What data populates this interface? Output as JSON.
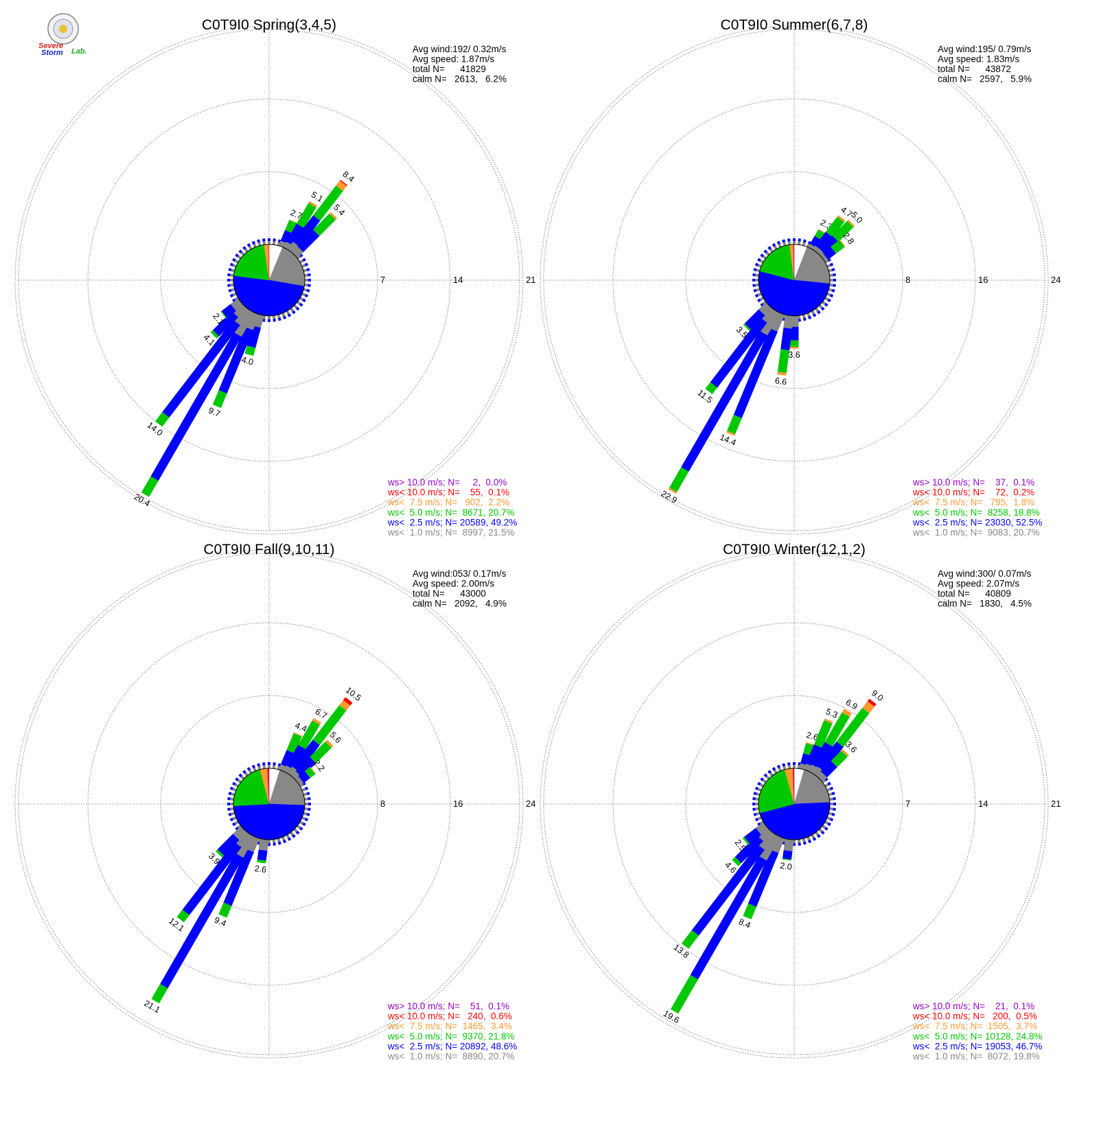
{
  "logo": {
    "line1": "Severe",
    "line2": "Storm",
    "line3": "Lab."
  },
  "colors": {
    "calm": "#ffffff",
    "ws_lt_1": "#888888",
    "ws_lt_2_5": "#0000ff",
    "ws_lt_5": "#00c800",
    "ws_lt_7_5": "#ff9933",
    "ws_lt_10": "#ff0000",
    "ws_gt_10": "#9900cc"
  },
  "chart_data": [
    {
      "type": "polar-bar",
      "title": "C0T9I0 Spring(3,4,5)",
      "stats": [
        "Avg wind:192/ 0.32m/s",
        "Avg speed: 1.87m/s",
        "total N=      41829",
        "calm N=   2613,   6.2%"
      ],
      "ring_labels": [
        "7",
        "14",
        "21"
      ],
      "rmax": 21,
      "legend": [
        {
          "text": "ws> 10.0 m/s; N=     2,  0.0%",
          "color": "#9900cc"
        },
        {
          "text": "ws< 10.0 m/s; N=    55,  0.1%",
          "color": "#ff0000"
        },
        {
          "text": "ws<  7.5 m/s; N=   902,  2.2%",
          "color": "#ff9933"
        },
        {
          "text": "ws<  5.0 m/s; N=  8671, 20.7%",
          "color": "#00c800"
        },
        {
          "text": "ws<  2.5 m/s; N= 20589, 49.2%",
          "color": "#0000ff"
        },
        {
          "text": "ws<  1.0 m/s; N=  8997, 21.5%",
          "color": "#888888"
        }
      ],
      "pie": [
        6.2,
        21.5,
        49.2,
        20.7,
        2.2,
        0.1,
        0.0
      ],
      "petals": [
        {
          "dir": 22.5,
          "total": 2.7,
          "label": "2.7",
          "segs": [
            0.5,
            1.1,
            1.05,
            0.05
          ]
        },
        {
          "dir": 30,
          "total": 5.1,
          "label": "5.1",
          "segs": [
            0.6,
            2.0,
            2.3,
            0.2
          ]
        },
        {
          "dir": 37.5,
          "total": 8.4,
          "label": "8.4",
          "segs": [
            0.9,
            3.2,
            3.6,
            0.6,
            0.1
          ]
        },
        {
          "dir": 45,
          "total": 5.4,
          "label": "5.4",
          "segs": [
            0.8,
            2.2,
            2.2,
            0.2
          ]
        },
        {
          "dir": 195,
          "total": 4.0,
          "label": "4.0",
          "segs": [
            1.2,
            2.0,
            0.8
          ]
        },
        {
          "dir": 202.5,
          "total": 9.7,
          "label": "9.7",
          "segs": [
            1.6,
            6.6,
            1.5
          ]
        },
        {
          "dir": 210,
          "total": 20.4,
          "label": "20.4",
          "segs": [
            2.6,
            16.0,
            1.8
          ]
        },
        {
          "dir": 217.5,
          "total": 14.0,
          "label": "14.0",
          "segs": [
            1.7,
            11.2,
            1.1
          ]
        },
        {
          "dir": 225,
          "total": 4.1,
          "label": "4.1",
          "segs": [
            1.2,
            2.6,
            0.3
          ]
        },
        {
          "dir": 232.5,
          "total": 2.1,
          "label": "2.1",
          "segs": [
            0.9,
            1.1,
            0.1
          ]
        }
      ]
    },
    {
      "type": "polar-bar",
      "title": "C0T9I0 Summer(6,7,8)",
      "stats": [
        "Avg wind:195/ 0.79m/s",
        "Avg speed: 1.83m/s",
        "total N=      43872",
        "calm N=   2597,   5.9%"
      ],
      "ring_labels": [
        "8",
        "16",
        "24"
      ],
      "rmax": 24,
      "legend": [
        {
          "text": "ws> 10.0 m/s; N=    37,  0.1%",
          "color": "#9900cc"
        },
        {
          "text": "ws< 10.0 m/s; N=    72,  0.2%",
          "color": "#ff0000"
        },
        {
          "text": "ws<  7.5 m/s; N=   795,  1.8%",
          "color": "#ff9933"
        },
        {
          "text": "ws<  5.0 m/s; N=  8258, 18.8%",
          "color": "#00c800"
        },
        {
          "text": "ws<  2.5 m/s; N= 23030, 52.5%",
          "color": "#0000ff"
        },
        {
          "text": "ws<  1.0 m/s; N=  9083, 20.7%",
          "color": "#888888"
        }
      ],
      "pie": [
        5.9,
        20.7,
        52.5,
        18.8,
        1.8,
        0.2,
        0.1
      ],
      "petals": [
        {
          "dir": 30,
          "total": 2.3,
          "label": "2.3",
          "segs": [
            0.4,
            1.0,
            0.8,
            0.1
          ]
        },
        {
          "dir": 37.5,
          "total": 4.7,
          "label": "4.7",
          "segs": [
            0.5,
            1.9,
            2.1,
            0.2
          ]
        },
        {
          "dir": 45,
          "total": 5.0,
          "label": "5.0",
          "segs": [
            0.5,
            2.0,
            2.3,
            0.2
          ]
        },
        {
          "dir": 52.5,
          "total": 2.8,
          "label": "2.8",
          "segs": [
            0.4,
            1.1,
            1.2,
            0.1
          ]
        },
        {
          "dir": 180,
          "total": 3.6,
          "label": "3.6",
          "segs": [
            1.2,
            1.5,
            0.7,
            0.2
          ]
        },
        {
          "dir": 187.5,
          "total": 6.6,
          "label": "6.6",
          "segs": [
            1.4,
            2.4,
            2.5,
            0.3
          ]
        },
        {
          "dir": 202.5,
          "total": 14.4,
          "label": "14.4",
          "segs": [
            2.0,
            10.3,
            1.9,
            0.2
          ]
        },
        {
          "dir": 210,
          "total": 22.9,
          "label": "22.9",
          "segs": [
            2.8,
            17.3,
            2.6,
            0.2
          ]
        },
        {
          "dir": 217.5,
          "total": 11.5,
          "label": "11.5",
          "segs": [
            1.6,
            9.0,
            0.9
          ]
        },
        {
          "dir": 225,
          "total": 3.5,
          "label": "3.5",
          "segs": [
            1.1,
            2.2,
            0.2
          ]
        }
      ]
    },
    {
      "type": "polar-bar",
      "title": "C0T9I0 Fall(9,10,11)",
      "stats": [
        "Avg wind:053/ 0.17m/s",
        "Avg speed: 2.00m/s",
        "total N=      43000",
        "calm N=   2092,   4.9%"
      ],
      "ring_labels": [
        "8",
        "16",
        "24"
      ],
      "rmax": 24,
      "legend": [
        {
          "text": "ws> 10.0 m/s; N=    51,  0.1%",
          "color": "#9900cc"
        },
        {
          "text": "ws< 10.0 m/s; N=   240,  0.6%",
          "color": "#ff0000"
        },
        {
          "text": "ws<  7.5 m/s; N=  1465,  3.4%",
          "color": "#ff9933"
        },
        {
          "text": "ws<  5.0 m/s; N=  9370, 21.8%",
          "color": "#00c800"
        },
        {
          "text": "ws<  2.5 m/s; N= 20892, 48.6%",
          "color": "#0000ff"
        },
        {
          "text": "ws<  1.0 m/s; N=  8890, 20.7%",
          "color": "#888888"
        }
      ],
      "pie": [
        4.9,
        20.7,
        48.6,
        21.8,
        3.4,
        0.6,
        0.1
      ],
      "petals": [
        {
          "dir": 22.5,
          "total": 4.4,
          "label": "4.4",
          "segs": [
            0.6,
            1.7,
            2.0,
            0.1
          ]
        },
        {
          "dir": 30,
          "total": 6.7,
          "label": "6.7",
          "segs": [
            0.7,
            2.6,
            3.1,
            0.3
          ]
        },
        {
          "dir": 37.5,
          "total": 10.5,
          "label": "10.5",
          "segs": [
            0.9,
            3.7,
            4.8,
            0.7,
            0.4
          ]
        },
        {
          "dir": 45,
          "total": 5.6,
          "label": "5.6",
          "segs": [
            0.7,
            2.2,
            2.4,
            0.3
          ]
        },
        {
          "dir": 52.5,
          "total": 2.2,
          "label": "2.2",
          "segs": [
            0.5,
            0.9,
            0.7,
            0.1
          ]
        },
        {
          "dir": 187.5,
          "total": 2.6,
          "label": "2.6",
          "segs": [
            1.2,
            1.1,
            0.3
          ]
        },
        {
          "dir": 202.5,
          "total": 9.4,
          "label": "9.4",
          "segs": [
            1.6,
            6.4,
            1.4
          ]
        },
        {
          "dir": 210,
          "total": 21.1,
          "label": "21.1",
          "segs": [
            2.6,
            16.6,
            1.9
          ]
        },
        {
          "dir": 217.5,
          "total": 12.1,
          "label": "12.1",
          "segs": [
            1.7,
            9.4,
            1.0
          ]
        },
        {
          "dir": 225,
          "total": 3.9,
          "label": "3.9",
          "segs": [
            1.2,
            2.4,
            0.3
          ]
        }
      ]
    },
    {
      "type": "polar-bar",
      "title": "C0T9I0 Winter(12,1,2)",
      "stats": [
        "Avg wind:300/ 0.07m/s",
        "Avg speed: 2.07m/s",
        "total N=      40809",
        "calm N=   1830,   4.5%"
      ],
      "ring_labels": [
        "7",
        "14",
        "21"
      ],
      "rmax": 21,
      "legend": [
        {
          "text": "ws> 10.0 m/s; N=    21,  0.1%",
          "color": "#9900cc"
        },
        {
          "text": "ws< 10.0 m/s; N=   200,  0.5%",
          "color": "#ff0000"
        },
        {
          "text": "ws<  7.5 m/s; N=  1505,  3.7%",
          "color": "#ff9933"
        },
        {
          "text": "ws<  5.0 m/s; N= 10128, 24.8%",
          "color": "#00c800"
        },
        {
          "text": "ws<  2.5 m/s; N= 19053, 46.7%",
          "color": "#0000ff"
        },
        {
          "text": "ws<  1.0 m/s; N=  8072, 19.8%",
          "color": "#888888"
        }
      ],
      "pie": [
        4.5,
        19.8,
        46.7,
        24.8,
        3.7,
        0.5,
        0.1
      ],
      "petals": [
        {
          "dir": 15,
          "total": 2.6,
          "label": "2.6",
          "segs": [
            0.5,
            1.0,
            1.0,
            0.1
          ]
        },
        {
          "dir": 22.5,
          "total": 5.3,
          "label": "5.3",
          "segs": [
            0.6,
            2.0,
            2.5,
            0.2
          ]
        },
        {
          "dir": 30,
          "total": 6.9,
          "label": "6.9",
          "segs": [
            0.7,
            2.5,
            3.3,
            0.4
          ]
        },
        {
          "dir": 37.5,
          "total": 9.0,
          "label": "9.0",
          "segs": [
            0.8,
            3.0,
            4.1,
            0.8,
            0.3
          ]
        },
        {
          "dir": 45,
          "total": 3.6,
          "label": "3.6",
          "segs": [
            0.6,
            1.4,
            1.4,
            0.2
          ]
        },
        {
          "dir": 187.5,
          "total": 2.0,
          "label": "2.0",
          "segs": [
            1.1,
            0.8,
            0.1
          ]
        },
        {
          "dir": 202.5,
          "total": 8.4,
          "label": "8.4",
          "segs": [
            1.5,
            5.6,
            1.3
          ]
        },
        {
          "dir": 210,
          "total": 19.6,
          "label": "19.6",
          "segs": [
            2.6,
            13.2,
            3.8
          ]
        },
        {
          "dir": 217.5,
          "total": 13.8,
          "label": "13.8",
          "segs": [
            1.8,
            10.4,
            1.6
          ]
        },
        {
          "dir": 225,
          "total": 4.6,
          "label": "4.6",
          "segs": [
            1.2,
            3.0,
            0.4
          ]
        },
        {
          "dir": 232.5,
          "total": 2.5,
          "label": "2.5",
          "segs": [
            0.9,
            1.4,
            0.2
          ]
        }
      ]
    }
  ]
}
